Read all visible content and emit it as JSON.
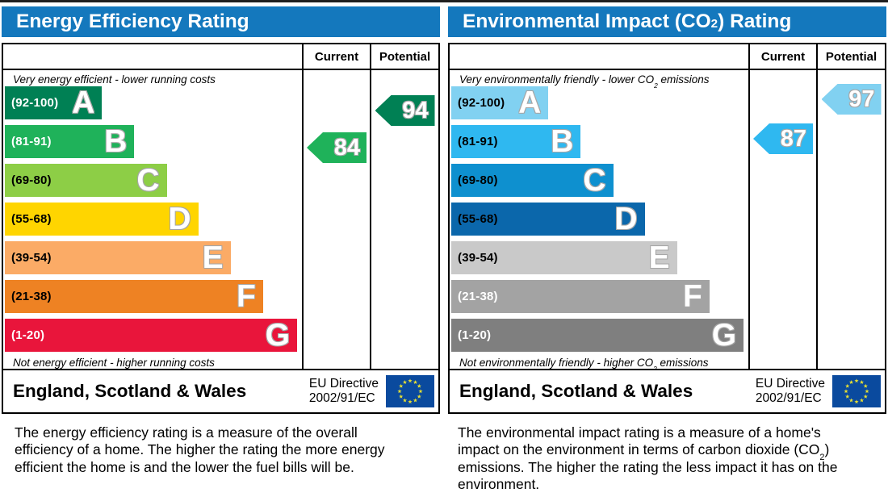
{
  "colors": {
    "header_bg": "#1478bd",
    "border": "#000000",
    "page_bg": "#ffffff",
    "eu_flag_blue": "#0a4a9e",
    "eu_star_yellow": "#e9e131"
  },
  "chart_data": [
    {
      "type": "bar",
      "title": "Energy Efficiency Rating",
      "categories": [
        "A (92-100)",
        "B (81-91)",
        "C (69-80)",
        "D (55-68)",
        "E (39-54)",
        "F (21-38)",
        "G (1-20)"
      ],
      "series": [
        {
          "name": "Current",
          "values": [
            84
          ],
          "band": "B"
        },
        {
          "name": "Potential",
          "values": [
            94
          ],
          "band": "A"
        }
      ],
      "ylim": [
        1,
        100
      ],
      "legend_position": "none",
      "note": "EPC band chart; current and potential ratings drawn as left-pointing arrows in their band rows"
    },
    {
      "type": "bar",
      "title": "Environmental Impact (CO2) Rating",
      "categories": [
        "A (92-100)",
        "B (81-91)",
        "C (69-80)",
        "D (55-68)",
        "E (39-54)",
        "F (21-38)",
        "G (1-20)"
      ],
      "series": [
        {
          "name": "Current",
          "values": [
            87
          ],
          "band": "B"
        },
        {
          "name": "Potential",
          "values": [
            97
          ],
          "band": "A"
        }
      ],
      "ylim": [
        1,
        100
      ],
      "legend_position": "none",
      "note": "EPC CO2 band chart; current and potential ratings drawn as left-pointing arrows in their band rows"
    }
  ],
  "panels": [
    {
      "id": "energy",
      "title": {
        "pre": "Energy Efficiency Rating",
        "sub": "",
        "post": ""
      },
      "col_current": "Current",
      "col_potential": "Potential",
      "caption_top": {
        "pre": "Very energy efficient - lower running costs",
        "sub": "",
        "post": ""
      },
      "caption_bottom": {
        "pre": "Not energy efficient - higher running costs",
        "sub": "",
        "post": ""
      },
      "bands": [
        {
          "letter": "A",
          "range_label": "(92-100)",
          "lo": 92,
          "hi": 100,
          "color": "#008054",
          "label_color": "#ffffff",
          "width_pct": 32.7
        },
        {
          "letter": "B",
          "range_label": "(81-91)",
          "lo": 81,
          "hi": 91,
          "color": "#1fb25a",
          "label_color": "#ffffff",
          "width_pct": 43.6
        },
        {
          "letter": "C",
          "range_label": "(69-80)",
          "lo": 69,
          "hi": 80,
          "color": "#8dce46",
          "label_color": "#000000",
          "width_pct": 54.5
        },
        {
          "letter": "D",
          "range_label": "(55-68)",
          "lo": 55,
          "hi": 68,
          "color": "#ffd500",
          "label_color": "#000000",
          "width_pct": 65.1
        },
        {
          "letter": "E",
          "range_label": "(39-54)",
          "lo": 39,
          "hi": 54,
          "color": "#fbab66",
          "label_color": "#000000",
          "width_pct": 76.0
        },
        {
          "letter": "F",
          "range_label": "(21-38)",
          "lo": 21,
          "hi": 38,
          "color": "#ee8223",
          "label_color": "#000000",
          "width_pct": 86.9
        },
        {
          "letter": "G",
          "range_label": "(1-20)",
          "lo": 1,
          "hi": 20,
          "color": "#e9153b",
          "label_color": "#ffffff",
          "width_pct": 98.4
        }
      ],
      "current": {
        "value": 84,
        "color": "#1fb25a"
      },
      "potential": {
        "value": 94,
        "color": "#008054"
      },
      "footer": {
        "region": "England, Scotland & Wales",
        "directive1": "EU Directive",
        "directive2": "2002/91/EC"
      },
      "description": {
        "pre": "The energy efficiency rating is a measure of the overall efficiency of a home. The higher the rating the more energy efficient the home is and the lower the fuel bills will be.",
        "sub": "",
        "post": ""
      }
    },
    {
      "id": "environment",
      "title": {
        "pre": "Environmental Impact (CO",
        "sub": "2",
        "post": ") Rating"
      },
      "col_current": "Current",
      "col_potential": "Potential",
      "caption_top": {
        "pre": "Very environmentally friendly - lower CO",
        "sub": "2",
        "post": " emissions"
      },
      "caption_bottom": {
        "pre": "Not environmentally friendly - higher CO",
        "sub": "2",
        "post": " emissions"
      },
      "bands": [
        {
          "letter": "A",
          "range_label": "(92-100)",
          "lo": 92,
          "hi": 100,
          "color": "#81d1f1",
          "label_color": "#000000",
          "width_pct": 32.7
        },
        {
          "letter": "B",
          "range_label": "(81-91)",
          "lo": 81,
          "hi": 91,
          "color": "#2fb8f0",
          "label_color": "#000000",
          "width_pct": 43.6
        },
        {
          "letter": "C",
          "range_label": "(69-80)",
          "lo": 69,
          "hi": 80,
          "color": "#0e90cf",
          "label_color": "#000000",
          "width_pct": 54.5
        },
        {
          "letter": "D",
          "range_label": "(55-68)",
          "lo": 55,
          "hi": 68,
          "color": "#0b67ab",
          "label_color": "#000000",
          "width_pct": 65.1
        },
        {
          "letter": "E",
          "range_label": "(39-54)",
          "lo": 39,
          "hi": 54,
          "color": "#c9c9c9",
          "label_color": "#000000",
          "width_pct": 76.0
        },
        {
          "letter": "F",
          "range_label": "(21-38)",
          "lo": 21,
          "hi": 38,
          "color": "#a3a3a3",
          "label_color": "#ffffff",
          "width_pct": 86.9
        },
        {
          "letter": "G",
          "range_label": "(1-20)",
          "lo": 1,
          "hi": 20,
          "color": "#7f7f7f",
          "label_color": "#ffffff",
          "width_pct": 98.4
        }
      ],
      "current": {
        "value": 87,
        "color": "#2fb8f0"
      },
      "potential": {
        "value": 97,
        "color": "#81d1f1"
      },
      "footer": {
        "region": "England, Scotland & Wales",
        "directive1": "EU Directive",
        "directive2": "2002/91/EC"
      },
      "description": {
        "pre": "The environmental impact rating is a measure of a home's impact on the environment in terms of carbon dioxide (CO",
        "sub": "2",
        "post": ") emissions. The higher the rating the less impact it has on the environment."
      }
    }
  ]
}
